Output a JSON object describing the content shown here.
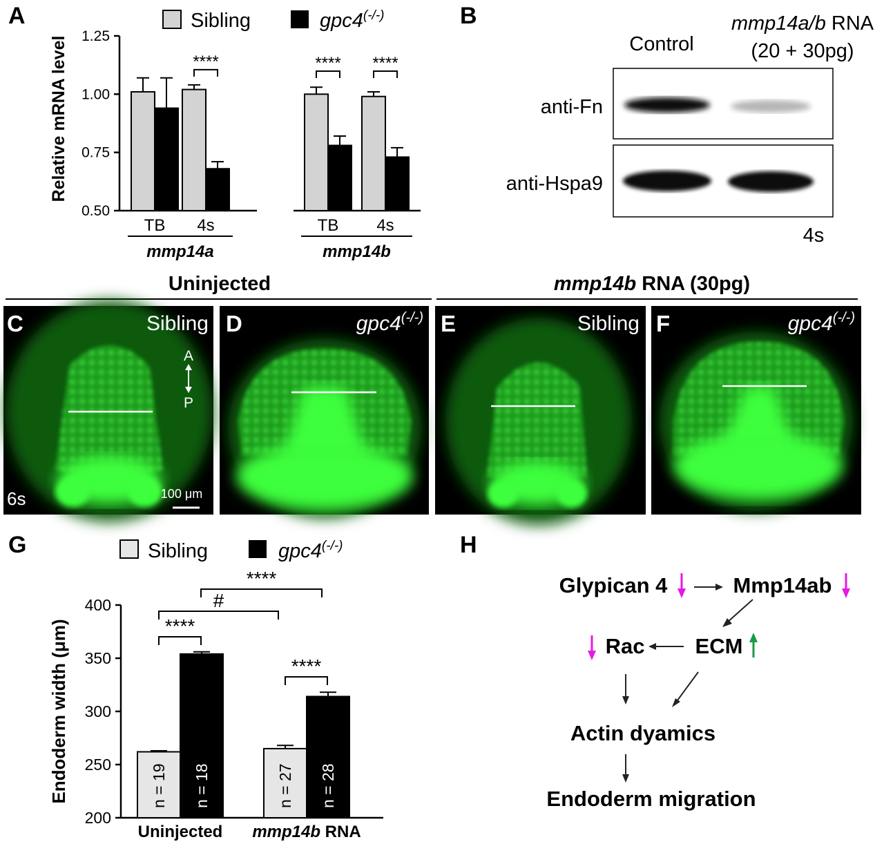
{
  "panels": {
    "A": {
      "letter": "A",
      "legend": [
        {
          "label": "Sibling",
          "color": "#d3d3d3"
        },
        {
          "label": "gpc4",
          "sup": "(-/-)",
          "color": "#000000"
        }
      ],
      "chart_data": {
        "type": "bar",
        "ylabel": "Relative mRNA level",
        "ylim": [
          0.5,
          1.25
        ],
        "yticks": [
          "0.50",
          "0.75",
          "1.00",
          "1.25"
        ],
        "groups": [
          {
            "gene": "mmp14a",
            "stages": [
              {
                "stage": "TB",
                "sibling": 1.01,
                "sibling_err": 0.06,
                "mutant": 0.94,
                "mutant_err": 0.13,
                "sig": ""
              },
              {
                "stage": "4s",
                "sibling": 1.02,
                "sibling_err": 0.02,
                "mutant": 0.68,
                "mutant_err": 0.03,
                "sig": "****"
              }
            ]
          },
          {
            "gene": "mmp14b",
            "stages": [
              {
                "stage": "TB",
                "sibling": 1.0,
                "sibling_err": 0.03,
                "mutant": 0.78,
                "mutant_err": 0.04,
                "sig": "****"
              },
              {
                "stage": "4s",
                "sibling": 0.99,
                "sibling_err": 0.02,
                "mutant": 0.73,
                "mutant_err": 0.04,
                "sig": "****"
              }
            ]
          }
        ]
      }
    },
    "B": {
      "letter": "B",
      "col_control": "Control",
      "col_rna_italic": "mmp14a/b",
      "col_rna_rest": " RNA",
      "col_rna_dose": "(20 + 30pg)",
      "row1": "anti-Fn",
      "row2": "anti-Hspa9",
      "stage": "4s",
      "band_level": {
        "control_fn": 1.0,
        "rna_fn": 0.3,
        "control_hspa9": 1.0,
        "rna_hspa9": 1.0
      }
    },
    "images": {
      "header_left": "Uninjected",
      "header_right_italic": "mmp14b",
      "header_right_rest": " RNA (30pg)",
      "tiles": [
        {
          "letter": "C",
          "label": "Sibling",
          "italic": false,
          "sup": ""
        },
        {
          "letter": "D",
          "label": "gpc4",
          "italic": true,
          "sup": "(-/-)"
        },
        {
          "letter": "E",
          "label": "Sibling",
          "italic": false,
          "sup": ""
        },
        {
          "letter": "F",
          "label": "gpc4",
          "italic": true,
          "sup": "(-/-)"
        }
      ],
      "axis_a": "A",
      "axis_p": "P",
      "stage": "6s",
      "scale": "100 μm"
    },
    "G": {
      "letter": "G",
      "legend": [
        {
          "label": "Sibling",
          "color": "#e6e6e6"
        },
        {
          "label": "gpc4",
          "sup": "(-/-)",
          "color": "#000000"
        }
      ],
      "chart_data": {
        "type": "bar",
        "ylabel": "Endoderm width (μm)",
        "ylim": [
          200,
          400
        ],
        "yticks": [
          "200",
          "250",
          "300",
          "350",
          "400"
        ],
        "categories": [
          "Uninjected",
          "mmp14b RNA"
        ],
        "category_labels": [
          {
            "italic": "",
            "rest": "Uninjected"
          },
          {
            "italic": "mmp14b",
            "rest": " RNA"
          }
        ],
        "series": [
          {
            "name": "Sibling",
            "values": [
              262,
              265
            ],
            "errors": [
              1,
              3
            ],
            "n": [
              "n = 19",
              "n = 27"
            ]
          },
          {
            "name": "gpc4(-/-)",
            "values": [
              354,
              314
            ],
            "errors": [
              2,
              4
            ],
            "n": [
              "n = 18",
              "n = 28"
            ]
          }
        ],
        "annotations": [
          "****",
          "****",
          "#",
          "****"
        ]
      }
    },
    "H": {
      "letter": "H",
      "glypican": "Glypican 4",
      "mmp": "Mmp14ab",
      "rac": "Rac",
      "ecm": "ECM",
      "actin": "Actin dyamics",
      "migration": "Endoderm migration",
      "down_color": "#e619e6",
      "up_color": "#1a9a4a"
    }
  }
}
